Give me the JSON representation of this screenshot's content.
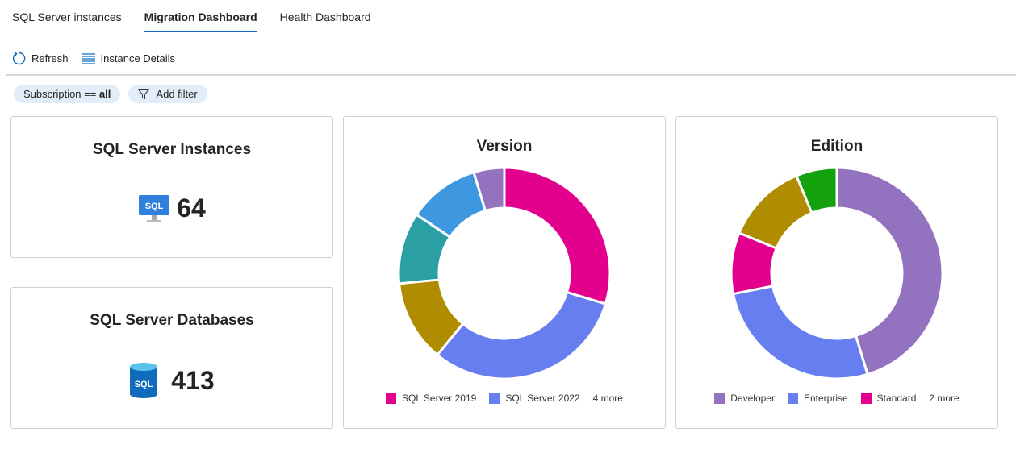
{
  "tabs": [
    {
      "label": "SQL Server instances"
    },
    {
      "label": "Migration Dashboard",
      "active": true
    },
    {
      "label": "Health Dashboard"
    }
  ],
  "toolbar": {
    "refresh": "Refresh",
    "details": "Instance Details"
  },
  "filters": {
    "subscription_key": "Subscription == ",
    "subscription_value": "all",
    "add": "Add filter"
  },
  "cards": {
    "instances": {
      "title": "SQL Server Instances",
      "value": "64",
      "icon": "sql-monitor-icon"
    },
    "databases": {
      "title": "SQL Server Databases",
      "value": "413",
      "icon": "sql-database-icon"
    }
  },
  "chart_data": [
    {
      "type": "pie",
      "title": "Version",
      "donut": true,
      "slices": [
        {
          "name": "SQL Server 2019",
          "value": 19,
          "color": "#e3008c"
        },
        {
          "name": "SQL Server 2022",
          "value": 20,
          "color": "#677ef0"
        },
        {
          "value": 8,
          "color": "#b08c00"
        },
        {
          "value": 7,
          "color": "#2aa0a4"
        },
        {
          "value": 7,
          "color": "#3d98df"
        },
        {
          "value": 3,
          "color": "#9373c0"
        }
      ],
      "legend": [
        "SQL Server 2019",
        "SQL Server 2022"
      ],
      "legend_more": "4 more",
      "legend_position": "bottom"
    },
    {
      "type": "pie",
      "title": "Edition",
      "donut": true,
      "slices": [
        {
          "name": "Developer",
          "value": 29,
          "color": "#9373c0"
        },
        {
          "name": "Enterprise",
          "value": 17,
          "color": "#677ef0"
        },
        {
          "name": "Standard",
          "value": 6,
          "color": "#e3008c"
        },
        {
          "value": 8,
          "color": "#b08c00"
        },
        {
          "value": 4,
          "color": "#13a10e"
        }
      ],
      "legend": [
        "Developer",
        "Enterprise",
        "Standard"
      ],
      "legend_more": "2 more",
      "legend_position": "bottom"
    }
  ]
}
